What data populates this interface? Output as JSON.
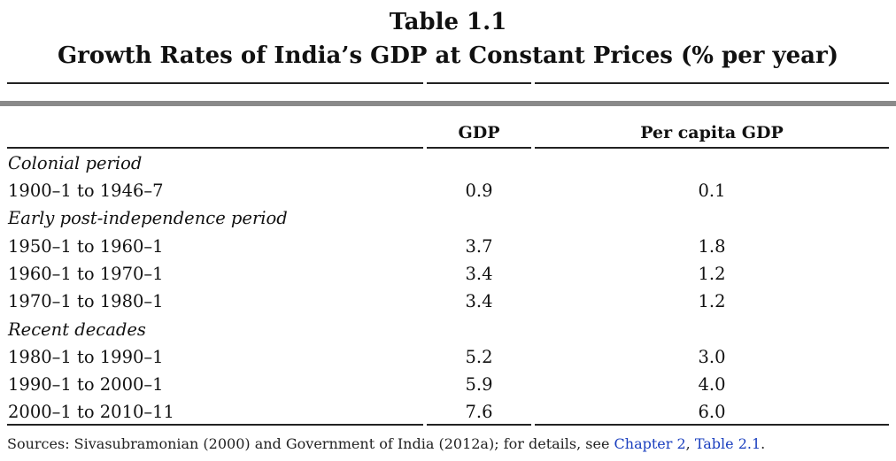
{
  "table": {
    "number": "Table 1.1",
    "title": "Growth Rates of India’s GDP at Constant Prices (% per year)",
    "columns": [
      "GDP",
      "Per capita GDP"
    ],
    "rows": [
      {
        "label": "Colonial period",
        "section": true
      },
      {
        "label": "1900–1 to 1946–7",
        "gdp": "0.9",
        "pc": "0.1"
      },
      {
        "label": "Early post-independence period",
        "section": true
      },
      {
        "label": "1950–1 to 1960–1",
        "gdp": "3.7",
        "pc": "1.8"
      },
      {
        "label": "1960–1 to 1970–1",
        "gdp": "3.4",
        "pc": "1.2"
      },
      {
        "label": "1970–1 to 1980–1",
        "gdp": "3.4",
        "pc": "1.2"
      },
      {
        "label": "Recent decades",
        "section": true
      },
      {
        "label": "1980–1 to 1990–1",
        "gdp": "5.2",
        "pc": "3.0"
      },
      {
        "label": "1990–1 to 2000–1",
        "gdp": "5.9",
        "pc": "4.0"
      },
      {
        "label": "2000–1 to 2010–11",
        "gdp": "7.6",
        "pc": "6.0"
      }
    ],
    "source": {
      "prefix": "Sources: Sivasubramonian (2000) and Government of India (2012a); for details, see ",
      "link1": "Chapter 2",
      "sep": ", ",
      "link2": "Table 2.1",
      "suffix": "."
    }
  }
}
